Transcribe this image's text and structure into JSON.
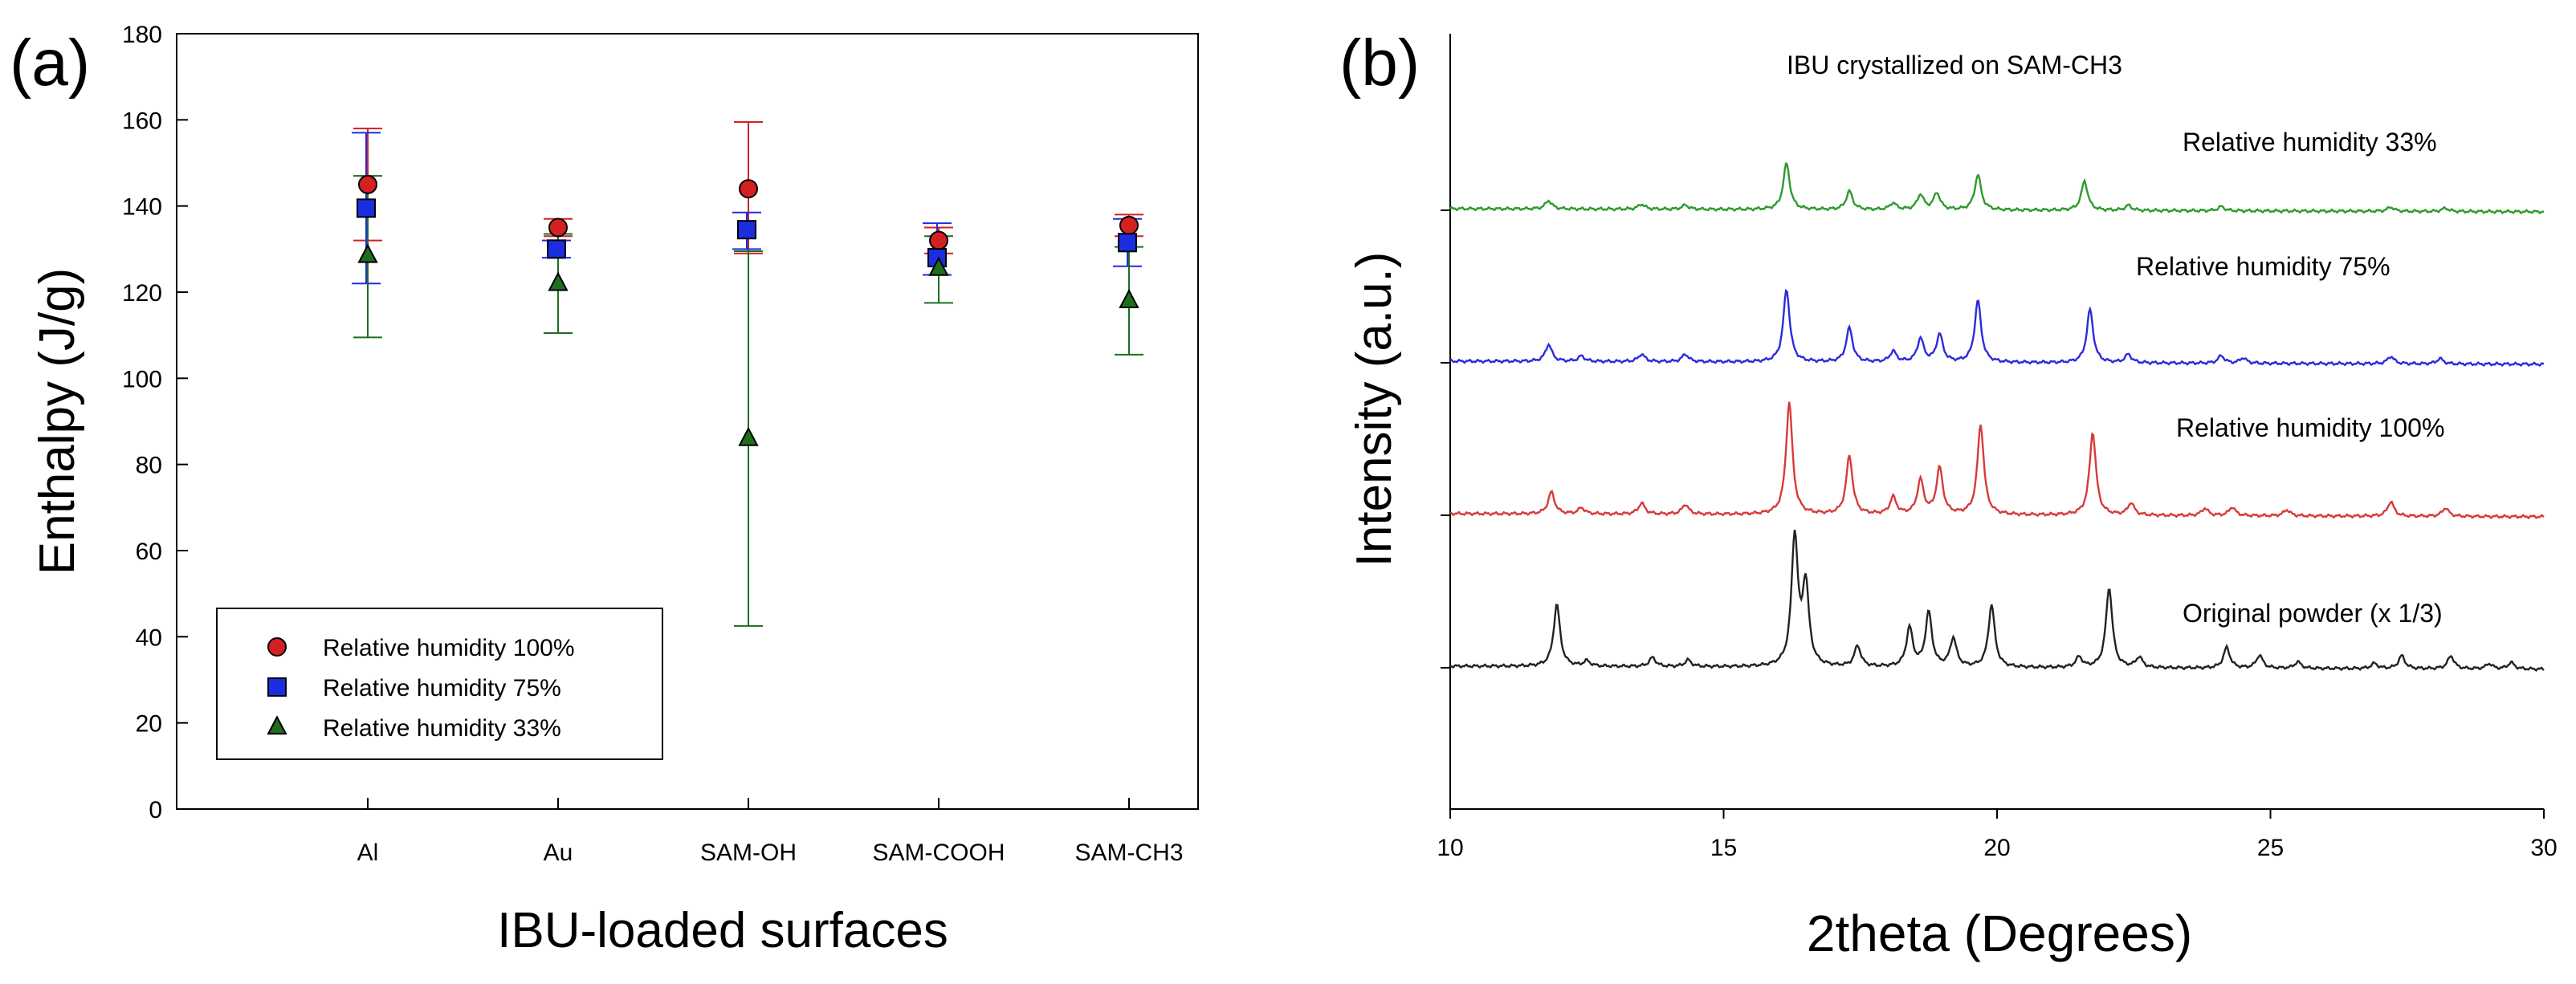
{
  "chart_data": [
    {
      "type": "scatter",
      "panel_label": "(a)",
      "title": "",
      "xlabel": "IBU-loaded surfaces",
      "ylabel": "Enthalpy (J/g)",
      "categories": [
        "Al",
        "Au",
        "SAM-OH",
        "SAM-COOH",
        "SAM-CH3"
      ],
      "ylim": [
        0,
        180
      ],
      "yticks": [
        "0",
        "20",
        "40",
        "60",
        "80",
        "100",
        "120",
        "140",
        "160",
        "180"
      ],
      "legend_position": "bottom-left",
      "series": [
        {
          "name": "Relative humidity 100%",
          "marker": "circle",
          "color": "#d42020",
          "values": [
            145,
            135,
            144,
            132,
            135.5
          ],
          "err_low": [
            132,
            133,
            129,
            129,
            133
          ],
          "err_high": [
            158,
            137,
            159.5,
            135,
            138
          ]
        },
        {
          "name": "Relative humidity 75%",
          "marker": "square",
          "color": "#1a2ee0",
          "values": [
            139.5,
            130,
            134.5,
            128,
            131.5
          ],
          "err_low": [
            122,
            128,
            130,
            124,
            126
          ],
          "err_high": [
            157,
            132,
            138.5,
            136,
            137
          ]
        },
        {
          "name": "Relative humidity 33%",
          "marker": "triangle",
          "color": "#1e6e1e",
          "values": [
            128.5,
            122,
            86,
            125.5,
            118
          ],
          "err_low": [
            109.5,
            110.5,
            42.5,
            117.5,
            105.5
          ],
          "err_high": [
            147,
            133.5,
            129.5,
            133,
            130.5
          ]
        }
      ]
    },
    {
      "type": "line",
      "panel_label": "(b)",
      "title": "IBU crystallized on SAM-CH3",
      "xlabel": "2theta (Degrees)",
      "ylabel": "Intensity (a.u.)",
      "xlim": [
        10,
        30
      ],
      "xticks": [
        "10",
        "15",
        "20",
        "25",
        "30"
      ],
      "series": [
        {
          "name": "Relative humidity 33%",
          "color": "#2e9a2e",
          "baseline": 3.0,
          "scale": 0.55,
          "peaks": [
            [
              11.8,
              0.1
            ],
            [
              13.5,
              0.06
            ],
            [
              14.3,
              0.05
            ],
            [
              16.15,
              0.55
            ],
            [
              17.3,
              0.22
            ],
            [
              18.1,
              0.08
            ],
            [
              18.6,
              0.18
            ],
            [
              18.9,
              0.2
            ],
            [
              19.65,
              0.42
            ],
            [
              21.6,
              0.35
            ],
            [
              22.4,
              0.06
            ],
            [
              24.1,
              0.05
            ],
            [
              27.2,
              0.05
            ],
            [
              28.2,
              0.04
            ]
          ]
        },
        {
          "name": "Relative humidity 75%",
          "color": "#2b2bdc",
          "baseline": 2.0,
          "scale": 0.7,
          "peaks": [
            [
              11.8,
              0.16
            ],
            [
              12.4,
              0.05
            ],
            [
              13.5,
              0.07
            ],
            [
              14.3,
              0.07
            ],
            [
              16.15,
              0.68
            ],
            [
              17.3,
              0.32
            ],
            [
              18.1,
              0.1
            ],
            [
              18.6,
              0.22
            ],
            [
              18.95,
              0.26
            ],
            [
              19.65,
              0.58
            ],
            [
              21.7,
              0.5
            ],
            [
              22.4,
              0.08
            ],
            [
              24.1,
              0.07
            ],
            [
              24.5,
              0.05
            ],
            [
              27.2,
              0.07
            ],
            [
              28.1,
              0.05
            ]
          ]
        },
        {
          "name": "Relative humidity 100%",
          "color": "#d83a3a",
          "baseline": 1.0,
          "scale": 0.8,
          "peaks": [
            [
              11.85,
              0.18
            ],
            [
              12.4,
              0.05
            ],
            [
              13.5,
              0.09
            ],
            [
              14.3,
              0.08
            ],
            [
              16.2,
              0.92
            ],
            [
              17.3,
              0.48
            ],
            [
              18.1,
              0.14
            ],
            [
              18.6,
              0.28
            ],
            [
              18.95,
              0.38
            ],
            [
              19.7,
              0.74
            ],
            [
              21.75,
              0.68
            ],
            [
              22.45,
              0.1
            ],
            [
              23.8,
              0.06
            ],
            [
              24.3,
              0.07
            ],
            [
              25.3,
              0.05
            ],
            [
              27.2,
              0.12
            ],
            [
              28.2,
              0.07
            ]
          ]
        },
        {
          "name": "Original powder (x 1/3)",
          "color": "#222222",
          "baseline": 0.0,
          "scale": 0.85,
          "peaks": [
            [
              11.95,
              0.48
            ],
            [
              12.5,
              0.04
            ],
            [
              13.7,
              0.07
            ],
            [
              14.35,
              0.05
            ],
            [
              16.3,
              1.0
            ],
            [
              16.5,
              0.62
            ],
            [
              17.45,
              0.16
            ],
            [
              18.4,
              0.3
            ],
            [
              18.75,
              0.42
            ],
            [
              19.2,
              0.22
            ],
            [
              19.9,
              0.48
            ],
            [
              21.5,
              0.08
            ],
            [
              22.05,
              0.62
            ],
            [
              22.6,
              0.08
            ],
            [
              24.2,
              0.16
            ],
            [
              24.8,
              0.1
            ],
            [
              25.5,
              0.05
            ],
            [
              26.9,
              0.04
            ],
            [
              27.4,
              0.1
            ],
            [
              28.3,
              0.1
            ],
            [
              29.0,
              0.04
            ],
            [
              29.4,
              0.05
            ]
          ]
        }
      ]
    }
  ]
}
